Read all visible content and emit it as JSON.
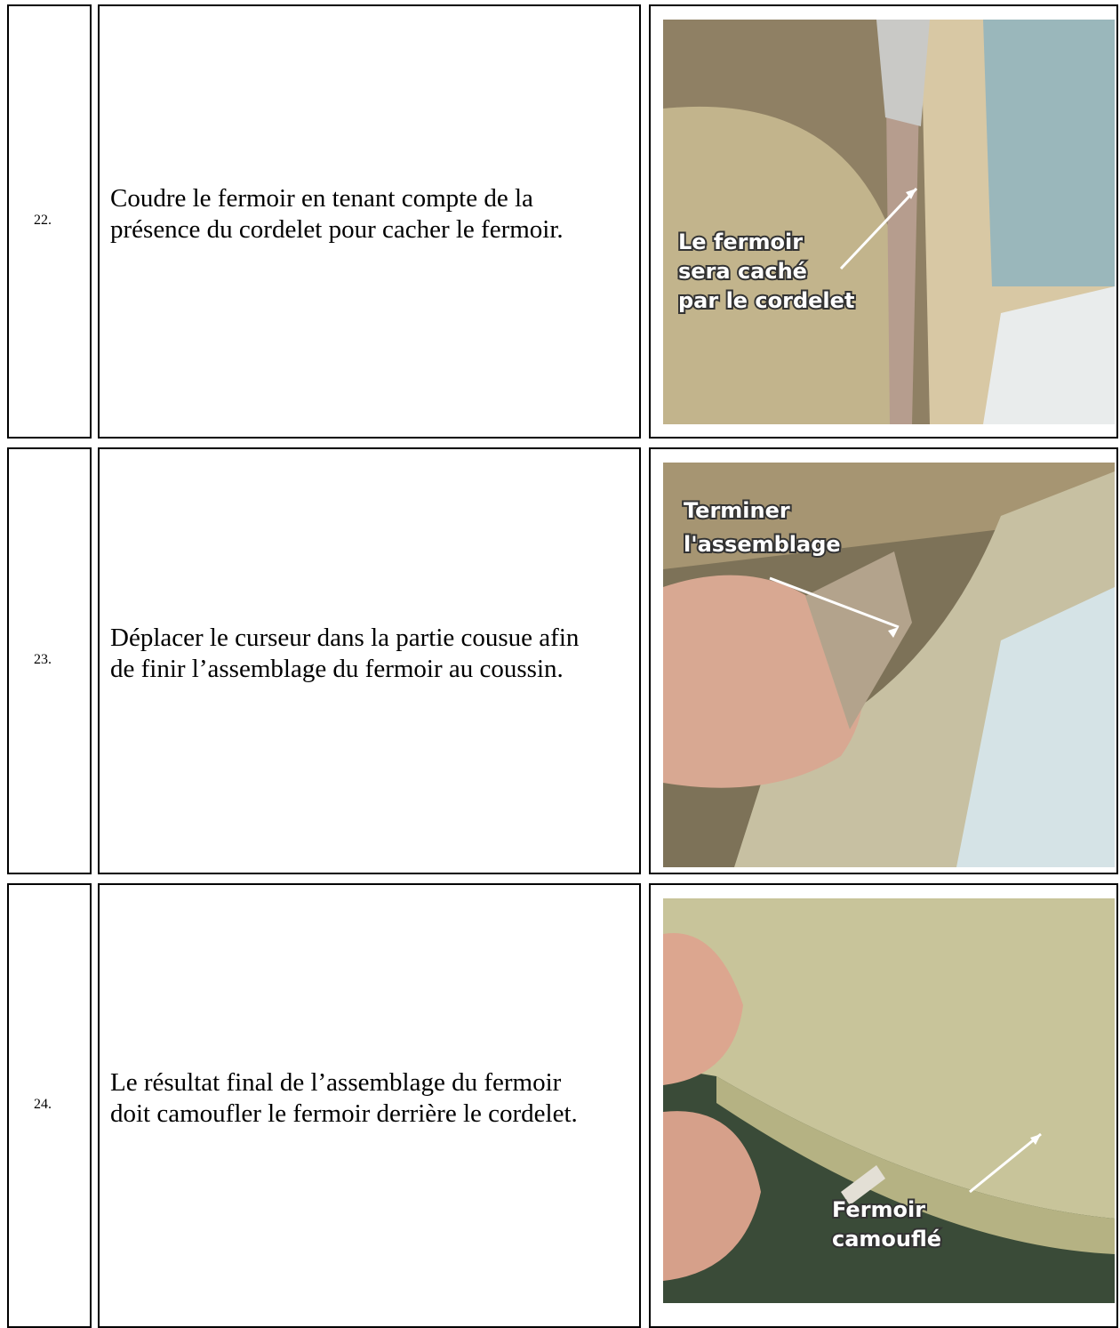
{
  "rows": [
    {
      "number": "22.",
      "text": [
        "Coudre le fermoir en tenant compte de la",
        "présence du cordelet pour cacher le fermoir."
      ],
      "image_labels": [
        "Le fermoir",
        "sera caché",
        "par le cordelet"
      ]
    },
    {
      "number": "23.",
      "text": [
        "Déplacer le curseur dans la partie cousue afin",
        "de finir l’assemblage du fermoir au coussin."
      ],
      "image_labels": [
        "Terminer",
        "l'assemblage"
      ]
    },
    {
      "number": "24.",
      "text": [
        "Le résultat final de l’assemblage du fermoir",
        "doit camoufler le fermoir derrière le cordelet."
      ],
      "image_labels": [
        "Fermoir",
        "camouflé"
      ]
    }
  ]
}
